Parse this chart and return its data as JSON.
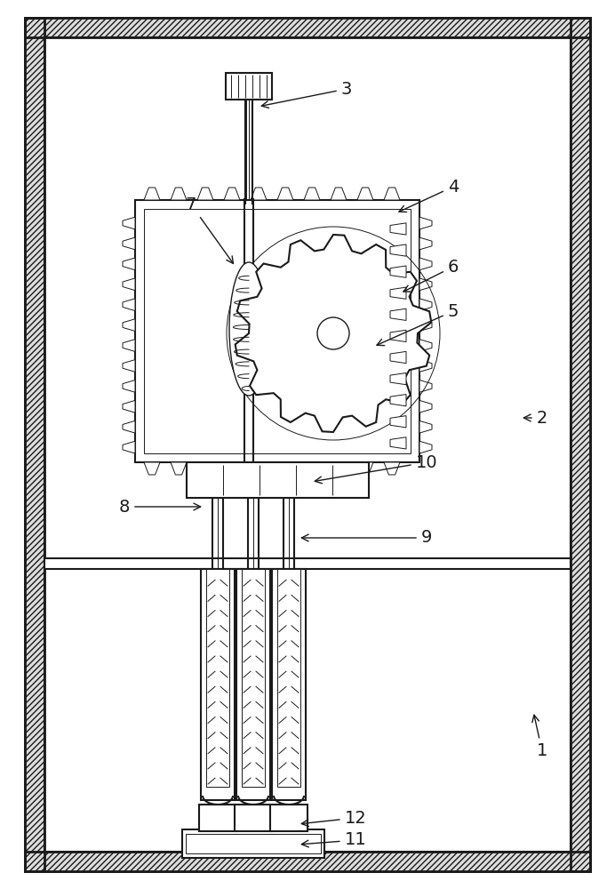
{
  "bg_color": "#ffffff",
  "line_color": "#1a1a1a",
  "fig_width": 6.92,
  "fig_height": 10.0,
  "dpi": 100
}
